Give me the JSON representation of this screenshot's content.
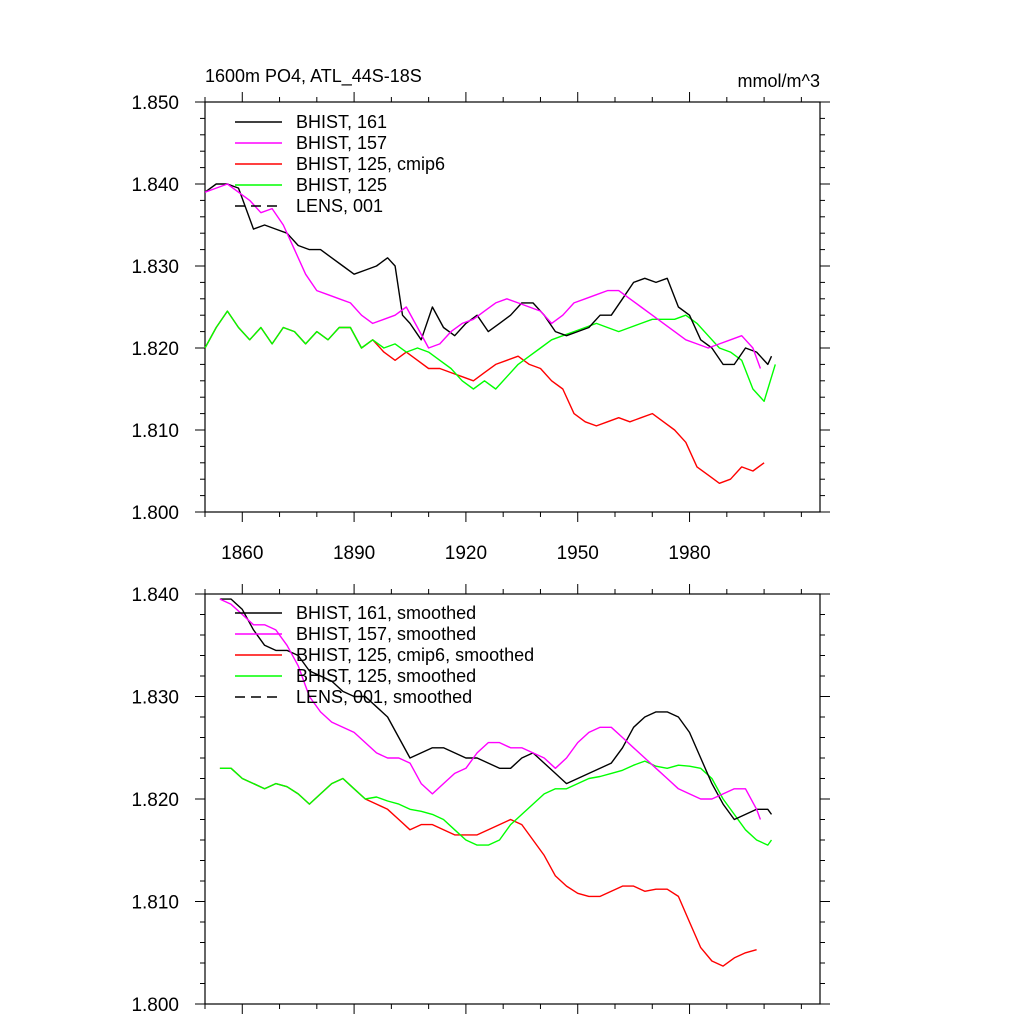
{
  "chart_data": [
    {
      "type": "line",
      "title": "1600m PO4, ATL_44S-18S",
      "units": "mmol/m^3",
      "xlim": [
        1850,
        2015
      ],
      "ylim": [
        1.8,
        1.85
      ],
      "x_ticks": [
        1860,
        1890,
        1920,
        1950,
        1980
      ],
      "x_tick_labels": [
        "1860",
        "1890",
        "1920",
        "1950",
        "1980"
      ],
      "y_ticks": [
        1.8,
        1.81,
        1.82,
        1.83,
        1.84,
        1.85
      ],
      "y_tick_labels": [
        "1.800",
        "1.810",
        "1.820",
        "1.830",
        "1.840",
        "1.850"
      ],
      "legend_position": "top-left",
      "series": [
        {
          "name": "BHIST, 161",
          "color": "#000000",
          "dash": "solid",
          "x": [
            1850,
            1853,
            1856,
            1859,
            1861,
            1863,
            1866,
            1869,
            1872,
            1875,
            1878,
            1881,
            1884,
            1887,
            1890,
            1893,
            1896,
            1899,
            1901,
            1903,
            1905,
            1908,
            1911,
            1914,
            1917,
            1920,
            1923,
            1926,
            1929,
            1932,
            1935,
            1938,
            1941,
            1944,
            1947,
            1950,
            1953,
            1956,
            1959,
            1962,
            1965,
            1968,
            1971,
            1974,
            1977,
            1980,
            1983,
            1986,
            1989,
            1992,
            1995,
            1998,
            2001,
            2002
          ],
          "y": [
            1.839,
            1.84,
            1.84,
            1.8395,
            1.837,
            1.8345,
            1.835,
            1.8345,
            1.834,
            1.8325,
            1.832,
            1.832,
            1.831,
            1.83,
            1.829,
            1.8295,
            1.83,
            1.831,
            1.83,
            1.824,
            1.823,
            1.821,
            1.825,
            1.8225,
            1.8215,
            1.823,
            1.824,
            1.822,
            1.823,
            1.824,
            1.8255,
            1.8255,
            1.824,
            1.822,
            1.8215,
            1.822,
            1.8225,
            1.824,
            1.824,
            1.826,
            1.828,
            1.8285,
            1.828,
            1.8285,
            1.825,
            1.824,
            1.821,
            1.82,
            1.818,
            1.818,
            1.82,
            1.8195,
            1.818,
            1.819
          ]
        },
        {
          "name": "BHIST, 157",
          "color": "#ff00ff",
          "dash": "solid",
          "x": [
            1850,
            1853,
            1856,
            1859,
            1862,
            1865,
            1868,
            1871,
            1874,
            1877,
            1880,
            1883,
            1886,
            1889,
            1892,
            1895,
            1898,
            1901,
            1904,
            1907,
            1910,
            1913,
            1916,
            1919,
            1922,
            1925,
            1928,
            1931,
            1934,
            1937,
            1940,
            1943,
            1946,
            1949,
            1952,
            1955,
            1958,
            1961,
            1964,
            1967,
            1970,
            1973,
            1976,
            1979,
            1982,
            1985,
            1988,
            1991,
            1994,
            1997,
            1999
          ],
          "y": [
            1.839,
            1.8395,
            1.84,
            1.839,
            1.838,
            1.8365,
            1.837,
            1.835,
            1.832,
            1.829,
            1.827,
            1.8265,
            1.826,
            1.8255,
            1.824,
            1.823,
            1.8235,
            1.824,
            1.825,
            1.8225,
            1.82,
            1.8205,
            1.822,
            1.823,
            1.8235,
            1.8245,
            1.8255,
            1.826,
            1.8255,
            1.825,
            1.8245,
            1.823,
            1.824,
            1.8255,
            1.826,
            1.8265,
            1.827,
            1.827,
            1.826,
            1.825,
            1.824,
            1.823,
            1.822,
            1.821,
            1.8205,
            1.82,
            1.8205,
            1.821,
            1.8215,
            1.82,
            1.8175
          ]
        }
      ]
    },
    {
      "type": "line",
      "xlim": [
        1850,
        2015
      ],
      "ylim": [
        1.8,
        1.84
      ],
      "x_ticks": [
        1860,
        1890,
        1920,
        1950,
        1980
      ],
      "y_ticks": [
        1.8,
        1.81,
        1.82,
        1.83,
        1.84
      ],
      "y_tick_labels": [
        "1.800",
        "1.810",
        "1.820",
        "1.830",
        "1.840"
      ],
      "legend_position": "top-left",
      "series": [
        {
          "name": "BHIST, 161, smoothed",
          "color": "#000000",
          "dash": "solid",
          "x": [
            1854,
            1857,
            1860,
            1863,
            1866,
            1869,
            1872,
            1875,
            1878,
            1881,
            1884,
            1887,
            1890,
            1893,
            1896,
            1899,
            1902,
            1905,
            1908,
            1911,
            1914,
            1917,
            1920,
            1923,
            1926,
            1929,
            1932,
            1935,
            1938,
            1941,
            1944,
            1947,
            1950,
            1953,
            1956,
            1959,
            1962,
            1965,
            1968,
            1971,
            1974,
            1977,
            1980,
            1983,
            1986,
            1989,
            1992,
            1995,
            1998,
            2001,
            2002
          ],
          "y": [
            1.8395,
            1.8395,
            1.8385,
            1.8365,
            1.835,
            1.8345,
            1.8345,
            1.834,
            1.8325,
            1.832,
            1.8315,
            1.8305,
            1.83,
            1.83,
            1.829,
            1.828,
            1.826,
            1.824,
            1.8245,
            1.825,
            1.825,
            1.8245,
            1.824,
            1.824,
            1.8235,
            1.823,
            1.823,
            1.824,
            1.8245,
            1.8235,
            1.8225,
            1.8215,
            1.822,
            1.8225,
            1.823,
            1.8235,
            1.825,
            1.827,
            1.828,
            1.8285,
            1.8285,
            1.828,
            1.8265,
            1.824,
            1.8215,
            1.8195,
            1.818,
            1.8185,
            1.819,
            1.819,
            1.8185
          ]
        },
        {
          "name": "BHIST, 157, smoothed",
          "color": "#ff00ff",
          "dash": "solid",
          "x": [
            1854,
            1857,
            1860,
            1863,
            1866,
            1869,
            1872,
            1875,
            1878,
            1881,
            1884,
            1887,
            1890,
            1893,
            1896,
            1899,
            1902,
            1905,
            1908,
            1911,
            1914,
            1917,
            1920,
            1923,
            1926,
            1929,
            1932,
            1935,
            1938,
            1941,
            1944,
            1947,
            1950,
            1953,
            1956,
            1959,
            1962,
            1965,
            1968,
            1971,
            1974,
            1977,
            1980,
            1983,
            1986,
            1989,
            1992,
            1995,
            1998,
            1999
          ],
          "y": [
            1.8395,
            1.839,
            1.838,
            1.837,
            1.837,
            1.8365,
            1.835,
            1.833,
            1.83,
            1.8285,
            1.8275,
            1.827,
            1.8265,
            1.8255,
            1.8245,
            1.824,
            1.824,
            1.8235,
            1.8215,
            1.8205,
            1.8215,
            1.8225,
            1.823,
            1.8245,
            1.8255,
            1.8255,
            1.825,
            1.825,
            1.8245,
            1.824,
            1.823,
            1.824,
            1.8255,
            1.8265,
            1.827,
            1.827,
            1.826,
            1.825,
            1.824,
            1.823,
            1.822,
            1.821,
            1.8205,
            1.82,
            1.82,
            1.8205,
            1.821,
            1.821,
            1.819,
            1.818
          ]
        }
      ]
    }
  ],
  "legend_top": [
    {
      "label": "BHIST, 161",
      "color": "#000000",
      "dash": "solid"
    },
    {
      "label": "BHIST, 157",
      "color": "#ff00ff",
      "dash": "solid"
    },
    {
      "label": "BHIST, 125, cmip6",
      "color": "#ff0000",
      "dash": "solid"
    },
    {
      "label": "BHIST, 125",
      "color": "#00ff00",
      "dash": "solid"
    },
    {
      "label": "LENS, 001",
      "color": "#000000",
      "dash": "dashed"
    }
  ],
  "legend_bottom": [
    {
      "label": "BHIST, 161, smoothed",
      "color": "#000000",
      "dash": "solid"
    },
    {
      "label": "BHIST, 157, smoothed",
      "color": "#ff00ff",
      "dash": "solid"
    },
    {
      "label": "BHIST, 125, cmip6, smoothed",
      "color": "#ff0000",
      "dash": "solid"
    },
    {
      "label": "BHIST, 125, smoothed",
      "color": "#00ff00",
      "dash": "solid"
    },
    {
      "label": "LENS, 001, smoothed",
      "color": "#000000",
      "dash": "dashed"
    }
  ],
  "extra_series_top": [
    {
      "name": "BHIST, 125, cmip6",
      "color": "#ff0000",
      "x": [
        1850,
        1853,
        1856,
        1859,
        1862,
        1865,
        1868,
        1871,
        1874,
        1877,
        1880,
        1883,
        1886,
        1889,
        1892,
        1895,
        1898,
        1901,
        1904,
        1907,
        1910,
        1913,
        1916,
        1919,
        1922,
        1925,
        1928,
        1931,
        1934,
        1937,
        1940,
        1943,
        1946,
        1949,
        1952,
        1955,
        1958,
        1961,
        1964,
        1967,
        1970,
        1973,
        1976,
        1979,
        1982,
        1985,
        1988,
        1991,
        1994,
        1997,
        2000
      ],
      "y": [
        1.82,
        1.8225,
        1.8245,
        1.8225,
        1.821,
        1.8225,
        1.8205,
        1.8225,
        1.822,
        1.8205,
        1.822,
        1.821,
        1.8225,
        1.8225,
        1.82,
        1.821,
        1.8195,
        1.8185,
        1.8195,
        1.8185,
        1.8175,
        1.8175,
        1.817,
        1.8165,
        1.816,
        1.817,
        1.818,
        1.8185,
        1.819,
        1.818,
        1.8175,
        1.816,
        1.815,
        1.812,
        1.811,
        1.8105,
        1.811,
        1.8115,
        1.811,
        1.8115,
        1.812,
        1.811,
        1.81,
        1.8085,
        1.8055,
        1.8045,
        1.8035,
        1.804,
        1.8055,
        1.805,
        1.806
      ]
    },
    {
      "name": "BHIST, 125",
      "color": "#00ff00",
      "x": [
        1850,
        1853,
        1856,
        1859,
        1862,
        1865,
        1868,
        1871,
        1874,
        1877,
        1880,
        1883,
        1886,
        1889,
        1892,
        1895,
        1898,
        1901,
        1904,
        1907,
        1910,
        1913,
        1916,
        1919,
        1922,
        1925,
        1928,
        1931,
        1934,
        1937,
        1940,
        1943,
        1946,
        1949,
        1952,
        1955,
        1958,
        1961,
        1964,
        1967,
        1970,
        1973,
        1976,
        1979,
        1982,
        1985,
        1988,
        1991,
        1994,
        1997,
        2000,
        2003
      ],
      "y": [
        1.82,
        1.8225,
        1.8245,
        1.8225,
        1.821,
        1.8225,
        1.8205,
        1.8225,
        1.822,
        1.8205,
        1.822,
        1.821,
        1.8225,
        1.8225,
        1.82,
        1.821,
        1.82,
        1.8205,
        1.8195,
        1.82,
        1.8195,
        1.8185,
        1.8175,
        1.816,
        1.815,
        1.816,
        1.815,
        1.8165,
        1.818,
        1.819,
        1.82,
        1.821,
        1.8215,
        1.822,
        1.8225,
        1.823,
        1.8225,
        1.822,
        1.8225,
        1.823,
        1.8235,
        1.8235,
        1.8235,
        1.824,
        1.823,
        1.8215,
        1.82,
        1.8195,
        1.8185,
        1.815,
        1.8135,
        1.818
      ]
    }
  ],
  "extra_series_bottom": [
    {
      "name": "BHIST, 125, cmip6, smoothed",
      "color": "#ff0000",
      "x": [
        1854,
        1857,
        1860,
        1863,
        1866,
        1869,
        1872,
        1875,
        1878,
        1881,
        1884,
        1887,
        1890,
        1893,
        1896,
        1899,
        1902,
        1905,
        1908,
        1911,
        1914,
        1917,
        1920,
        1923,
        1926,
        1929,
        1932,
        1935,
        1938,
        1941,
        1944,
        1947,
        1950,
        1953,
        1956,
        1959,
        1962,
        1965,
        1968,
        1971,
        1974,
        1977,
        1980,
        1983,
        1986,
        1989,
        1992,
        1995,
        1998
      ],
      "y": [
        1.823,
        1.823,
        1.822,
        1.8215,
        1.821,
        1.8215,
        1.8212,
        1.8205,
        1.8195,
        1.8205,
        1.8215,
        1.822,
        1.821,
        1.82,
        1.8195,
        1.819,
        1.818,
        1.817,
        1.8175,
        1.8175,
        1.817,
        1.8165,
        1.8165,
        1.8165,
        1.817,
        1.8175,
        1.818,
        1.8175,
        1.816,
        1.8145,
        1.8125,
        1.8115,
        1.8108,
        1.8105,
        1.8105,
        1.811,
        1.8115,
        1.8115,
        1.811,
        1.8112,
        1.8112,
        1.8105,
        1.808,
        1.8055,
        1.8042,
        1.8037,
        1.8045,
        1.805,
        1.8053
      ]
    },
    {
      "name": "BHIST, 125, smoothed",
      "color": "#00ff00",
      "x": [
        1854,
        1857,
        1860,
        1863,
        1866,
        1869,
        1872,
        1875,
        1878,
        1881,
        1884,
        1887,
        1890,
        1893,
        1896,
        1899,
        1902,
        1905,
        1908,
        1911,
        1914,
        1917,
        1920,
        1923,
        1926,
        1929,
        1932,
        1935,
        1938,
        1941,
        1944,
        1947,
        1950,
        1953,
        1956,
        1959,
        1962,
        1965,
        1968,
        1971,
        1974,
        1977,
        1980,
        1983,
        1986,
        1989,
        1992,
        1995,
        1998,
        2001,
        2002
      ],
      "y": [
        1.823,
        1.823,
        1.822,
        1.8215,
        1.821,
        1.8215,
        1.8212,
        1.8205,
        1.8195,
        1.8205,
        1.8215,
        1.822,
        1.821,
        1.82,
        1.8202,
        1.8198,
        1.8195,
        1.819,
        1.8188,
        1.8185,
        1.818,
        1.817,
        1.816,
        1.8155,
        1.8155,
        1.816,
        1.8175,
        1.8185,
        1.8195,
        1.8205,
        1.821,
        1.821,
        1.8215,
        1.822,
        1.8222,
        1.8225,
        1.8228,
        1.8233,
        1.8237,
        1.8232,
        1.823,
        1.8233,
        1.8232,
        1.823,
        1.822,
        1.82,
        1.8185,
        1.817,
        1.816,
        1.8155,
        1.816
      ]
    }
  ]
}
